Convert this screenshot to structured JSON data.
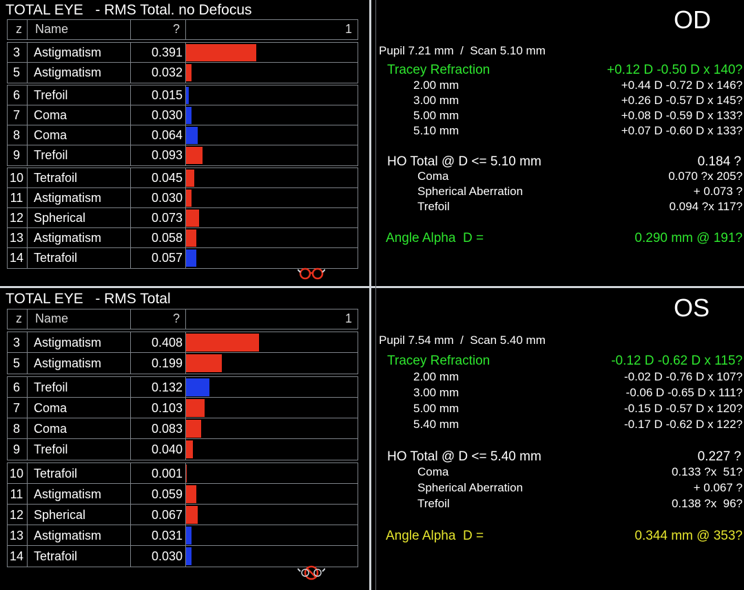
{
  "colors": {
    "positive": "#e8321e",
    "negative": "#1e3ce8",
    "green": "#2ee62e",
    "yellow": "#e6e62e"
  },
  "icons": [
    "glasses-icon",
    "no-glasses-icon"
  ],
  "table_headers": {
    "z": "z",
    "name": "Name",
    "scale_left": "?",
    "scale_right": "1"
  },
  "od": {
    "table_title": "TOTAL EYE   - RMS Total. no Defocus",
    "groups": [
      [
        {
          "z": "3",
          "name": "Astigmatism",
          "value": "0.391",
          "sign": "positive"
        },
        {
          "z": "5",
          "name": "Astigmatism",
          "value": "0.032",
          "sign": "positive"
        }
      ],
      [
        {
          "z": "6",
          "name": "Trefoil",
          "value": "0.015",
          "sign": "negative"
        },
        {
          "z": "7",
          "name": "Coma",
          "value": "0.030",
          "sign": "negative"
        },
        {
          "z": "8",
          "name": "Coma",
          "value": "0.064",
          "sign": "negative"
        },
        {
          "z": "9",
          "name": "Trefoil",
          "value": "0.093",
          "sign": "positive"
        }
      ],
      [
        {
          "z": "10",
          "name": "Tetrafoil",
          "value": "0.045",
          "sign": "positive"
        },
        {
          "z": "11",
          "name": "Astigmatism",
          "value": "0.030",
          "sign": "positive"
        },
        {
          "z": "12",
          "name": "Spherical",
          "value": "0.073",
          "sign": "positive"
        },
        {
          "z": "13",
          "name": "Astigmatism",
          "value": "0.058",
          "sign": "positive"
        },
        {
          "z": "14",
          "name": "Tetrafoil",
          "value": "0.057",
          "sign": "negative"
        }
      ]
    ],
    "eye": "OD",
    "pupil_scan": "Pupil 7.21 mm  /  Scan 5.10 mm",
    "refraction_label": "Tracey Refraction",
    "refraction_value": "+0.12 D -0.50 D x 140?",
    "refraction_rows": [
      {
        "mm": "2.00 mm",
        "value": "+0.44 D -0.72 D x 146?"
      },
      {
        "mm": "3.00 mm",
        "value": "+0.26 D -0.57 D x 145?"
      },
      {
        "mm": "5.00 mm",
        "value": "+0.08 D -0.59 D x 133?"
      },
      {
        "mm": "5.10 mm",
        "value": "+0.07 D -0.60 D x 133?"
      }
    ],
    "ho_label": "HO Total @ D <= 5.10 mm",
    "ho_value": "0.184 ?",
    "ho_rows": [
      {
        "name": "Coma",
        "value": "0.070 ?x 205?"
      },
      {
        "name": "Spherical Aberration",
        "value": "+ 0.073 ?"
      },
      {
        "name": "Trefoil",
        "value": "0.094 ?x 117?"
      }
    ],
    "alpha_label": "Angle Alpha  D =",
    "alpha_value": "0.290 mm @ 191?"
  },
  "os": {
    "table_title": "TOTAL EYE   - RMS Total",
    "groups": [
      [
        {
          "z": "3",
          "name": "Astigmatism",
          "value": "0.408",
          "sign": "positive"
        },
        {
          "z": "5",
          "name": "Astigmatism",
          "value": "0.199",
          "sign": "positive"
        }
      ],
      [
        {
          "z": "6",
          "name": "Trefoil",
          "value": "0.132",
          "sign": "negative"
        },
        {
          "z": "7",
          "name": "Coma",
          "value": "0.103",
          "sign": "positive"
        },
        {
          "z": "8",
          "name": "Coma",
          "value": "0.083",
          "sign": "positive"
        },
        {
          "z": "9",
          "name": "Trefoil",
          "value": "0.040",
          "sign": "positive"
        }
      ],
      [
        {
          "z": "10",
          "name": "Tetrafoil",
          "value": "0.001",
          "sign": "positive"
        },
        {
          "z": "11",
          "name": "Astigmatism",
          "value": "0.059",
          "sign": "positive"
        },
        {
          "z": "12",
          "name": "Spherical",
          "value": "0.067",
          "sign": "positive"
        },
        {
          "z": "13",
          "name": "Astigmatism",
          "value": "0.031",
          "sign": "negative"
        },
        {
          "z": "14",
          "name": "Tetrafoil",
          "value": "0.030",
          "sign": "negative"
        }
      ]
    ],
    "eye": "OS",
    "pupil_scan": "Pupil 7.54 mm  /  Scan 5.40 mm",
    "refraction_label": "Tracey Refraction",
    "refraction_value": "-0.12 D -0.62 D x 115?",
    "refraction_rows": [
      {
        "mm": "2.00 mm",
        "value": "-0.02 D -0.76 D x 107?"
      },
      {
        "mm": "3.00 mm",
        "value": "-0.06 D -0.65 D x 111?"
      },
      {
        "mm": "5.00 mm",
        "value": "-0.15 D -0.57 D x 120?"
      },
      {
        "mm": "5.40 mm",
        "value": "-0.17 D -0.62 D x 122?"
      }
    ],
    "ho_label": "HO Total @ D <= 5.40 mm",
    "ho_value": "0.227 ?",
    "ho_rows": [
      {
        "name": "Coma",
        "value": "0.133 ?x  51?"
      },
      {
        "name": "Spherical Aberration",
        "value": "+ 0.067 ?"
      },
      {
        "name": "Trefoil",
        "value": "0.138 ?x  96?"
      }
    ],
    "alpha_label": "Angle Alpha  D =",
    "alpha_value": "0.344 mm @ 353?"
  }
}
